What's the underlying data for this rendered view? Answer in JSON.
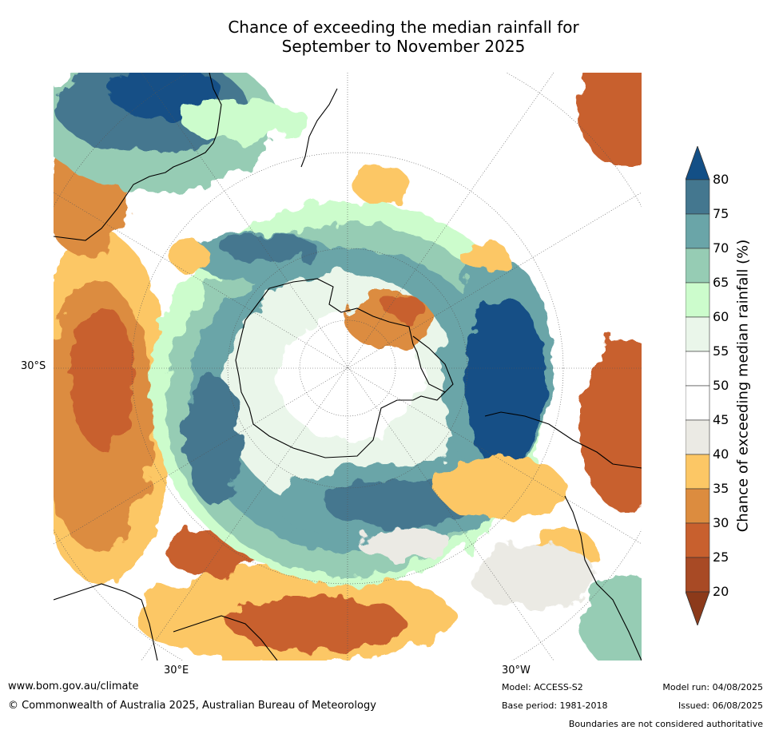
{
  "title_line1": "Chance of exceeding the median rainfall for",
  "title_line2": "September to November 2025",
  "axis_labels": {
    "lat": "30°S",
    "lon_east": "30°E",
    "lon_west": "30°W"
  },
  "colorbar": {
    "title": "Chance of exceeding median rainfall (%)",
    "ticks": [
      "80",
      "75",
      "70",
      "65",
      "60",
      "55",
      "50",
      "45",
      "40",
      "35",
      "30",
      "25",
      "20"
    ],
    "bands": [
      {
        "range": "<20",
        "color": "#8c3a1a"
      },
      {
        "range": "20-25",
        "color": "#a84a25"
      },
      {
        "range": "25-30",
        "color": "#c8602e"
      },
      {
        "range": "30-35",
        "color": "#dc8c3f"
      },
      {
        "range": "35-40",
        "color": "#fcc765"
      },
      {
        "range": "40-45",
        "color": "#ebeae4"
      },
      {
        "range": "45-50",
        "color": "#ffffff"
      },
      {
        "range": "50-55",
        "color": "#ffffff"
      },
      {
        "range": "55-60",
        "color": "#eaf6ea"
      },
      {
        "range": "60-65",
        "color": "#ccfccc"
      },
      {
        "range": "65-70",
        "color": "#96ccb4"
      },
      {
        "range": "70-75",
        "color": "#6aa5a8"
      },
      {
        "range": "75-80",
        "color": "#44778f"
      },
      {
        "range": ">80",
        "color": "#134f86"
      }
    ]
  },
  "footer": {
    "website": "www.bom.gov.au/climate",
    "copyright": "© Commonwealth of Australia 2025, Australian Bureau of Meteorology",
    "model": "Model: ACCESS-S2",
    "base_period": "Base period: 1981-2018",
    "model_run": "Model run: 04/08/2025",
    "issued": "Issued: 06/08/2025",
    "disclaimer": "Boundaries are not considered authoritative"
  }
}
